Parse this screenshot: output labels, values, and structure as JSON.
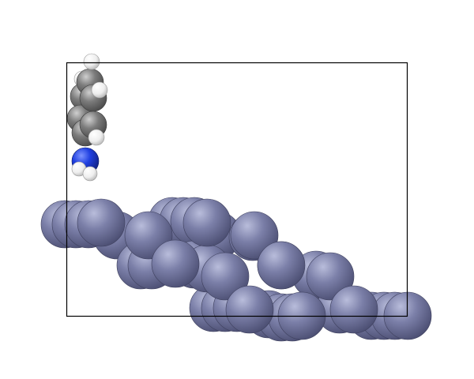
{
  "scene": {
    "background": "#ffffff",
    "cell_outline_color": "#000000",
    "atom_colors": {
      "metal": "#7b7fa8",
      "carbon": "#7c7c7c",
      "nitrogen": "#1f3fe0",
      "hydrogen": "#f2f2f2"
    }
  }
}
